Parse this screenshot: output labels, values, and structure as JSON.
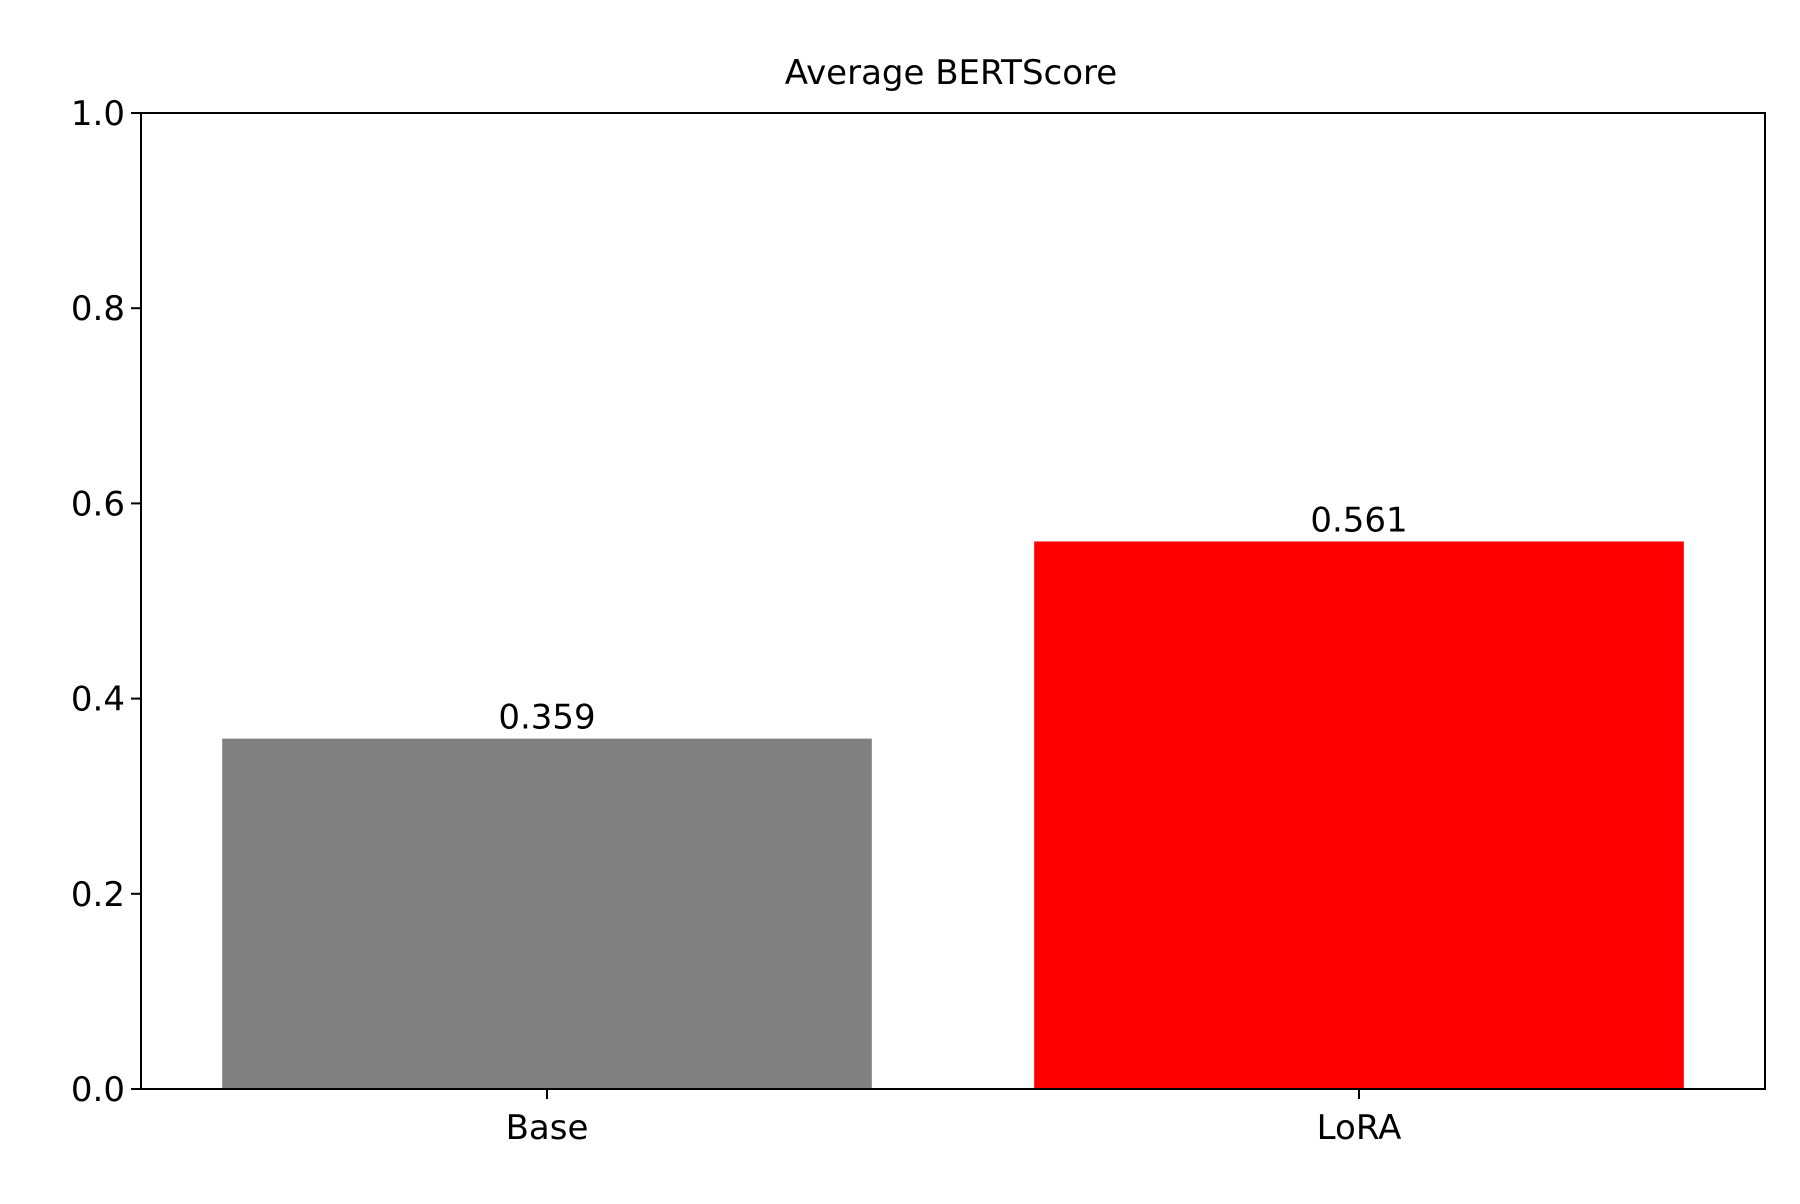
{
  "chart_data": {
    "type": "bar",
    "title": "Average BERTScore",
    "xlabel": "",
    "ylabel": "",
    "categories": [
      "Base",
      "LoRA"
    ],
    "values": [
      0.359,
      0.561
    ],
    "value_labels": [
      "0.359",
      "0.561"
    ],
    "bar_colors": [
      "#808080",
      "#ff0000"
    ],
    "ylim": [
      0,
      1.0
    ],
    "yticks": [
      0.0,
      0.2,
      0.4,
      0.6,
      0.8,
      1.0
    ],
    "ytick_labels": [
      "0.0",
      "0.2",
      "0.4",
      "0.6",
      "0.8",
      "1.0"
    ],
    "grid": false,
    "legend": "none"
  }
}
